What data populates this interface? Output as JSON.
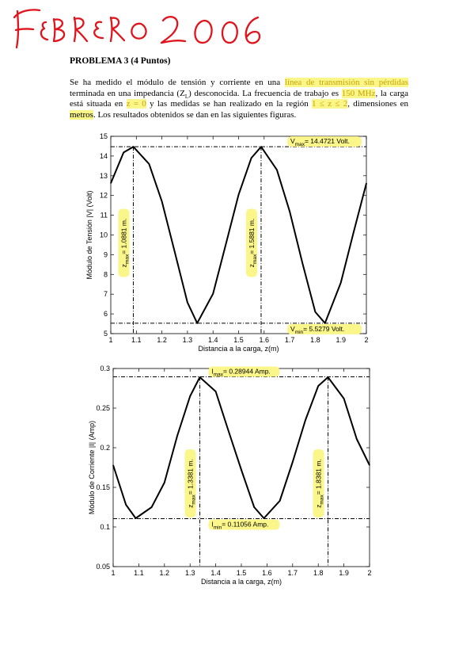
{
  "handwritten_heading": "FEBRERO 2006",
  "problem_title": "PROBLEMA 3 (4 Puntos)",
  "statement": {
    "s1": "Se ha medido el módulo de tensión y corriente en una ",
    "hl_line": "línea de transmisión sin pérdidas",
    "s2": " terminada en una impedancia (Z",
    "zl_sub": "L",
    "s3": ") desconocida. La frecuencia de trabajo es ",
    "hl_freq": "150 MHz",
    "s4": ", la carga está situada en ",
    "hl_z0": "z = 0",
    "s5": " y las medidas se han realizado en la región ",
    "hl_region": "1 ≤ z ≤ 2",
    "s6": ", dimensiones en ",
    "hl_units": "metros",
    "s7": ". Los resultados obtenidos se dan en las siguientes figuras."
  },
  "chart_data": [
    {
      "type": "line",
      "title": "",
      "xlabel": "Distancia a la carga, z(m)",
      "ylabel": "Módulo de Tensión |V| (Volt)",
      "xlim": [
        1,
        2
      ],
      "ylim": [
        5,
        15
      ],
      "xticks": [
        "1",
        "1.1",
        "1.2",
        "1.3",
        "1.4",
        "1.5",
        "1.6",
        "1.7",
        "1.8",
        "1.9",
        "2"
      ],
      "yticks": [
        "5",
        "6",
        "7",
        "8",
        "9",
        "10",
        "11",
        "12",
        "13",
        "14",
        "15"
      ],
      "grid": false,
      "series": [
        {
          "x": [
            1.0,
            1.05,
            1.0881,
            1.15,
            1.2,
            1.25,
            1.3,
            1.3381,
            1.4,
            1.45,
            1.5,
            1.55,
            1.5881,
            1.65,
            1.7,
            1.75,
            1.8,
            1.8381,
            1.9,
            1.95,
            2.0
          ],
          "y": [
            12.62,
            14.18,
            14.47,
            13.6,
            11.7,
            9.14,
            6.58,
            5.53,
            7.02,
            9.53,
            12.04,
            13.9,
            14.47,
            13.3,
            11.19,
            8.56,
            6.1,
            5.53,
            7.58,
            10.13,
            12.62
          ]
        }
      ],
      "annotations": {
        "max_label": "V",
        "max_sub": "max",
        "max_value": "= 14.4721 Volt.",
        "min_label": "V",
        "min_sub": "min",
        "min_value": "= 5.5279 Volt.",
        "zmax1_label": "z",
        "zmax1_sub": "max",
        "zmax1_value": "= 1.0881 m.",
        "zmax2_label": "z",
        "zmax2_sub": "max",
        "zmax2_value": "= 1.5881 m."
      },
      "reference_lines": {
        "vmax": 14.4721,
        "vmin": 5.5279,
        "z1": 1.0881,
        "z2": 1.5881
      },
      "colors": {
        "curve": "#000000",
        "highlight": "#fbf68a"
      }
    },
    {
      "type": "line",
      "title": "",
      "xlabel": "Distancia a la carga, z(m)",
      "ylabel": "Módulo de Corriente |I| (Amp)",
      "xlim": [
        1,
        2
      ],
      "ylim": [
        0.05,
        0.3
      ],
      "xticks": [
        "1",
        "1.1",
        "1.2",
        "1.3",
        "1.4",
        "1.5",
        "1.6",
        "1.7",
        "1.8",
        "1.9",
        "2"
      ],
      "yticks": [
        "0.05",
        "0.1",
        "0.15",
        "0.2",
        "0.25",
        "0.3"
      ],
      "grid": false,
      "series": [
        {
          "x": [
            1.0,
            1.05,
            1.0881,
            1.15,
            1.2,
            1.25,
            1.3,
            1.3381,
            1.4,
            1.45,
            1.5,
            1.55,
            1.5881,
            1.65,
            1.7,
            1.75,
            1.8,
            1.8381,
            1.9,
            1.95,
            2.0
          ],
          "y": [
            0.178,
            0.128,
            0.111,
            0.125,
            0.156,
            0.215,
            0.265,
            0.289,
            0.271,
            0.221,
            0.172,
            0.125,
            0.111,
            0.133,
            0.182,
            0.235,
            0.278,
            0.289,
            0.262,
            0.211,
            0.178
          ]
        }
      ],
      "annotations": {
        "max_label": "I",
        "max_sub": "max",
        "max_value": "= 0.28944 Amp.",
        "min_label": "I",
        "min_sub": "min",
        "min_value": "= 0.11056 Amp.",
        "zmax1_label": "z",
        "zmax1_sub": "max",
        "zmax1_value": "= 1.3381 m.",
        "zmax2_label": "z",
        "zmax2_sub": "max",
        "zmax2_value": "= 1.8381 m."
      },
      "reference_lines": {
        "imax": 0.28944,
        "imin": 0.11056,
        "z1": 1.3381,
        "z2": 1.8381
      },
      "colors": {
        "curve": "#000000",
        "highlight": "#fbf68a"
      }
    }
  ],
  "colors": {
    "handwriting": "#e0141c",
    "highlight": "#fbf68a",
    "highlight_text": "#c9a300"
  }
}
